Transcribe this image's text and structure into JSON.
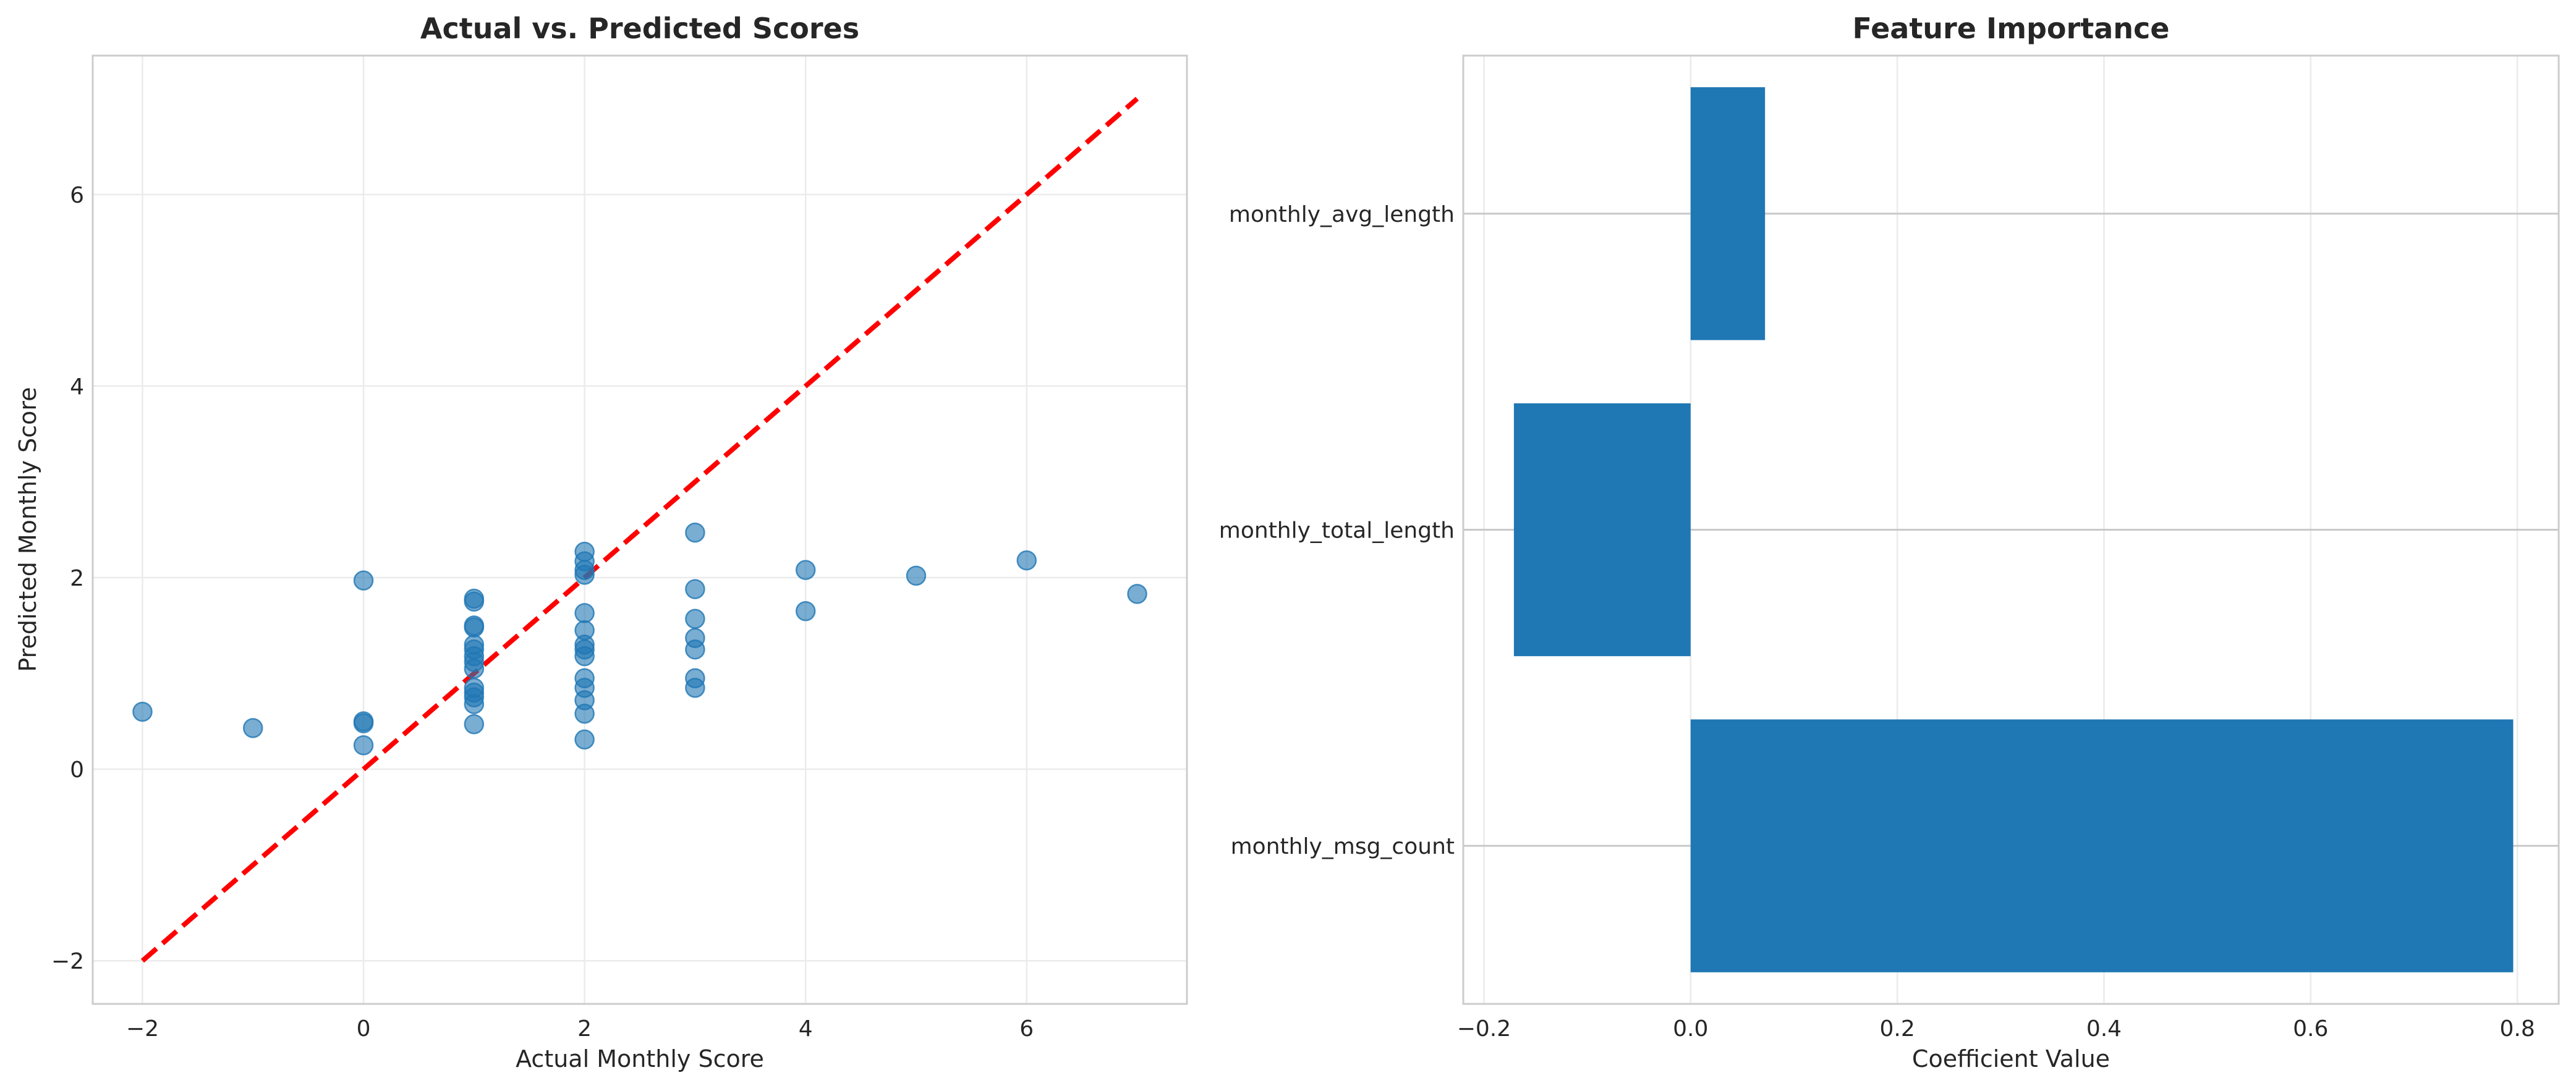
{
  "chart_data": [
    {
      "type": "scatter",
      "title": "Actual vs. Predicted Scores",
      "xlabel": "Actual Monthly Score",
      "ylabel": "Predicted Monthly Score",
      "xlim": [
        -2.45,
        7.45
      ],
      "ylim": [
        -2.45,
        7.45
      ],
      "xticks": [
        -2,
        0,
        2,
        4,
        6
      ],
      "yticks": [
        -2,
        0,
        2,
        4,
        6
      ],
      "tick_labels": {
        "x": [
          "−2",
          "0",
          "2",
          "4",
          "6"
        ],
        "y": [
          "−2",
          "0",
          "2",
          "4",
          "6"
        ]
      },
      "grid": true,
      "point_color": "#1f77b4",
      "point_alpha": 0.6,
      "reference_line": {
        "x": [
          -2,
          7
        ],
        "y": [
          -2,
          7
        ],
        "style": "dashed",
        "color": "#ff0000"
      },
      "points": [
        {
          "x": -2,
          "y": 0.6
        },
        {
          "x": -1,
          "y": 0.43
        },
        {
          "x": 0,
          "y": 1.97
        },
        {
          "x": 0,
          "y": 0.5
        },
        {
          "x": 0,
          "y": 0.48
        },
        {
          "x": 0,
          "y": 0.25
        },
        {
          "x": 1,
          "y": 1.78
        },
        {
          "x": 1,
          "y": 1.75
        },
        {
          "x": 1,
          "y": 1.5
        },
        {
          "x": 1,
          "y": 1.48
        },
        {
          "x": 1,
          "y": 1.3
        },
        {
          "x": 1,
          "y": 1.25
        },
        {
          "x": 1,
          "y": 1.18
        },
        {
          "x": 1,
          "y": 1.12
        },
        {
          "x": 1,
          "y": 1.05
        },
        {
          "x": 1,
          "y": 0.85
        },
        {
          "x": 1,
          "y": 0.8
        },
        {
          "x": 1,
          "y": 0.75
        },
        {
          "x": 1,
          "y": 0.68
        },
        {
          "x": 1,
          "y": 0.47
        },
        {
          "x": 2,
          "y": 2.27
        },
        {
          "x": 2,
          "y": 2.17
        },
        {
          "x": 2,
          "y": 2.08
        },
        {
          "x": 2,
          "y": 2.03
        },
        {
          "x": 2,
          "y": 1.63
        },
        {
          "x": 2,
          "y": 1.45
        },
        {
          "x": 2,
          "y": 1.3
        },
        {
          "x": 2,
          "y": 1.25
        },
        {
          "x": 2,
          "y": 1.18
        },
        {
          "x": 2,
          "y": 0.95
        },
        {
          "x": 2,
          "y": 0.85
        },
        {
          "x": 2,
          "y": 0.72
        },
        {
          "x": 2,
          "y": 0.58
        },
        {
          "x": 2,
          "y": 0.31
        },
        {
          "x": 3,
          "y": 2.47
        },
        {
          "x": 3,
          "y": 1.88
        },
        {
          "x": 3,
          "y": 1.57
        },
        {
          "x": 3,
          "y": 1.37
        },
        {
          "x": 3,
          "y": 1.25
        },
        {
          "x": 3,
          "y": 0.95
        },
        {
          "x": 3,
          "y": 0.85
        },
        {
          "x": 4,
          "y": 2.08
        },
        {
          "x": 4,
          "y": 1.65
        },
        {
          "x": 5,
          "y": 2.02
        },
        {
          "x": 6,
          "y": 2.18
        },
        {
          "x": 7,
          "y": 1.83
        }
      ]
    },
    {
      "type": "bar",
      "orientation": "horizontal",
      "title": "Feature Importance",
      "xlabel": "Coefficient Value",
      "ylabel": "",
      "xlim": [
        -0.22,
        0.84
      ],
      "xticks": [
        -0.2,
        0.0,
        0.2,
        0.4,
        0.6,
        0.8
      ],
      "tick_labels": {
        "x": [
          "−0.2",
          "0.0",
          "0.2",
          "0.4",
          "0.6",
          "0.8"
        ]
      },
      "grid": true,
      "bar_color": "#1f77b4",
      "categories": [
        "monthly_msg_count",
        "monthly_total_length",
        "monthly_avg_length"
      ],
      "values": [
        0.796,
        -0.171,
        0.072
      ]
    }
  ]
}
